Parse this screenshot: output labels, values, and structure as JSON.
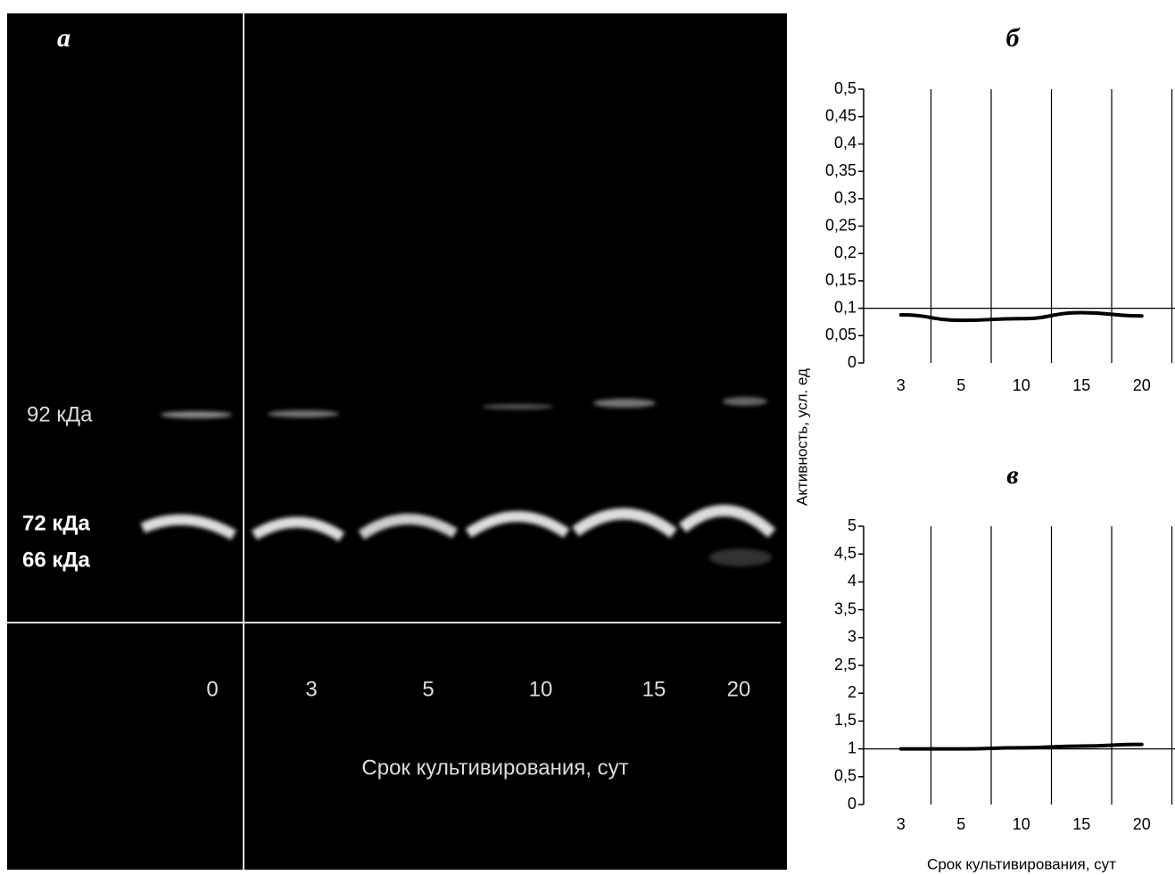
{
  "gel": {
    "panel_label": "а",
    "band_labels": [
      "92 кДа",
      "72 кДа",
      "66 кДа"
    ],
    "lane_labels": [
      "0",
      "3",
      "5",
      "10",
      "15",
      "20"
    ],
    "xlabel": "Срок культивирования, сут"
  },
  "chart_data": [
    {
      "type": "line",
      "title": "б",
      "ylabel": "Активность, усл. ед",
      "categories": [
        "3",
        "5",
        "10",
        "15",
        "20"
      ],
      "values": [
        0.088,
        0.078,
        0.081,
        0.092,
        0.086
      ],
      "color": "#000000",
      "ylim": [
        0,
        0.5
      ],
      "yticks": [
        0,
        {
          "value": 0.05,
          "label": "0,05"
        },
        {
          "value": 0.1,
          "label": "0,1"
        },
        {
          "value": 0.15,
          "label": "0,15"
        },
        {
          "value": 0.2,
          "label": "0,2"
        },
        {
          "value": 0.25,
          "label": "0,25"
        },
        {
          "value": 0.3,
          "label": "0,3"
        },
        {
          "value": 0.35,
          "label": "0,35"
        },
        {
          "value": 0.4,
          "label": "0,4"
        },
        {
          "value": 0.45,
          "label": "0,45"
        },
        {
          "value": 0.5,
          "label": "0,5"
        }
      ],
      "reference_line": 0.1
    },
    {
      "type": "line",
      "title": "в",
      "xlabel": "Срок культивирования, сут",
      "categories": [
        "3",
        "5",
        "10",
        "15",
        "20"
      ],
      "values": [
        1.0,
        1.0,
        1.02,
        1.05,
        1.08
      ],
      "color": "#000000",
      "ylim": [
        0,
        5
      ],
      "yticks": [
        0,
        {
          "value": 0.5,
          "label": "0,5"
        },
        1,
        {
          "value": 1.5,
          "label": "1,5"
        },
        2,
        {
          "value": 2.5,
          "label": "2,5"
        },
        3,
        {
          "value": 3.5,
          "label": "3,5"
        },
        4,
        {
          "value": 4.5,
          "label": "4,5"
        },
        5
      ],
      "reference_line": 1
    }
  ]
}
